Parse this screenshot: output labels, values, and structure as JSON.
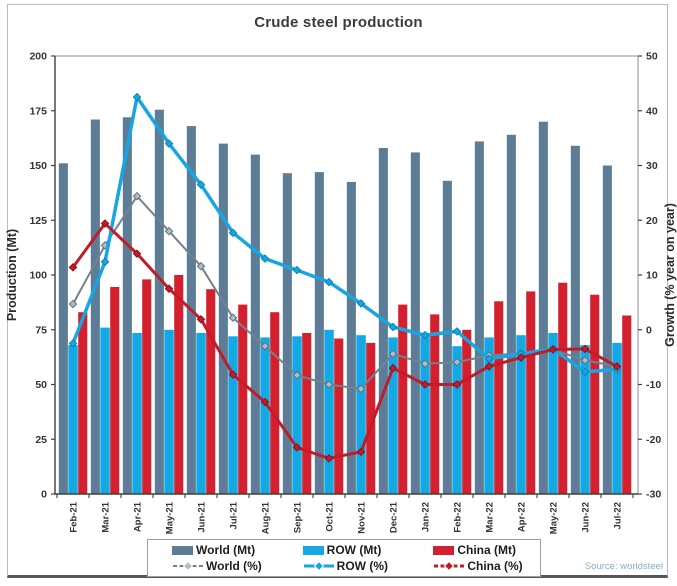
{
  "header": {
    "title": "Crude steel production"
  },
  "source_note": "Source: worldsteel",
  "colors": {
    "background": "#ffffff",
    "plot_border": "#8c8c8c",
    "axis_line": "#3f3f3f",
    "tick_text": "#333333",
    "world_bar": "#5d7d96",
    "row_bar": "#16a8e3",
    "china_bar": "#d2202e",
    "world_line": "#72838f",
    "row_line": "#18a6e2",
    "china_line": "#c01d2a",
    "source_text": "#86aec4"
  },
  "legend": {
    "row1": [
      {
        "label": "World (Mt)",
        "color": "#5d7d96"
      },
      {
        "label": "ROW (Mt)",
        "color": "#16a8e3"
      },
      {
        "label": "China (Mt)",
        "color": "#d2202e"
      }
    ],
    "row2": [
      {
        "label": "World (%)",
        "color": "#72838f",
        "marker_fill": "#aebdc7",
        "dashed": true,
        "thick": false
      },
      {
        "label": "ROW (%)",
        "color": "#18a6e2",
        "marker_fill": "#18a6e2",
        "dashed": false,
        "thick": true
      },
      {
        "label": "China (%)",
        "color": "#c01d2a",
        "marker_fill": "#c01d2a",
        "dashed": true,
        "thick": true
      }
    ]
  },
  "chart_data": {
    "type": "combo-bar-line",
    "title": "Crude steel production",
    "categories": [
      "Feb-21",
      "Mar-21",
      "Apr-21",
      "May-21",
      "Jun-21",
      "Jul-21",
      "Aug-21",
      "Sep-21",
      "Oct-21",
      "Nov-21",
      "Dec-21",
      "Jan-22",
      "Feb-22",
      "Mar-22",
      "Apr-22",
      "May-22",
      "Jun-22",
      "Jul-22"
    ],
    "bar_series": [
      {
        "id": "world-mt",
        "name": "World (Mt)",
        "color": "#5d7d96",
        "values": [
          151,
          171,
          172,
          175.5,
          168,
          160,
          155,
          146.5,
          147,
          142.5,
          158,
          156,
          143,
          161,
          164,
          170,
          159,
          150
        ]
      },
      {
        "id": "row-mt",
        "name": "ROW (Mt)",
        "color": "#16a8e3",
        "values": [
          68,
          76,
          73.5,
          75,
          73.5,
          72,
          71.5,
          72,
          75,
          72.5,
          71.5,
          72,
          67.5,
          71.5,
          72.5,
          73.5,
          68,
          69
        ]
      },
      {
        "id": "china-mt",
        "name": "China (Mt)",
        "color": "#d2202e",
        "values": [
          83,
          94.5,
          98,
          100,
          93.5,
          86.5,
          83,
          73.5,
          71,
          69,
          86.5,
          82,
          75,
          88,
          92.5,
          96.5,
          91,
          81.5
        ]
      }
    ],
    "line_series": [
      {
        "id": "world-pct",
        "name": "World (%)",
        "color": "#72838f",
        "width": 2,
        "marker_fill": "#aebdc7",
        "marker_stroke": "#5f7181",
        "values": [
          4.7,
          15.4,
          24.4,
          18.0,
          11.6,
          2.2,
          -3.0,
          -8.3,
          -10.0,
          -10.8,
          -4.4,
          -6.2,
          -5.9,
          -4.7,
          -4.3,
          -3.6,
          -5.6,
          -6.7
        ]
      },
      {
        "id": "row-pct",
        "name": "ROW (%)",
        "color": "#18a6e2",
        "width": 3.5,
        "marker_fill": "#18a6e2",
        "marker_stroke": "#0d82b5",
        "values": [
          -2.5,
          12.4,
          42.5,
          34.0,
          26.5,
          17.7,
          13.0,
          10.9,
          8.7,
          4.8,
          0.5,
          -1.0,
          -0.3,
          -5.3,
          -4.4,
          -3.5,
          -7.7,
          -7.2
        ]
      },
      {
        "id": "china-pct",
        "name": "China (%)",
        "color": "#c01d2a",
        "width": 3,
        "marker_fill": "#c01d2a",
        "marker_stroke": "#8f1119",
        "values": [
          11.4,
          19.4,
          13.9,
          7.5,
          1.9,
          -8.2,
          -13.2,
          -21.5,
          -23.5,
          -22.3,
          -7.0,
          -10.0,
          -10.0,
          -6.7,
          -5.1,
          -3.6,
          -3.5,
          -6.7
        ]
      }
    ],
    "left_axis": {
      "label": "Production (Mt)",
      "min": 0,
      "max": 200,
      "step": 25
    },
    "right_axis": {
      "label": "Growth (% year on year)",
      "min": -30,
      "max": 50,
      "step": 10
    },
    "grid": false,
    "legend_position": "bottom"
  }
}
